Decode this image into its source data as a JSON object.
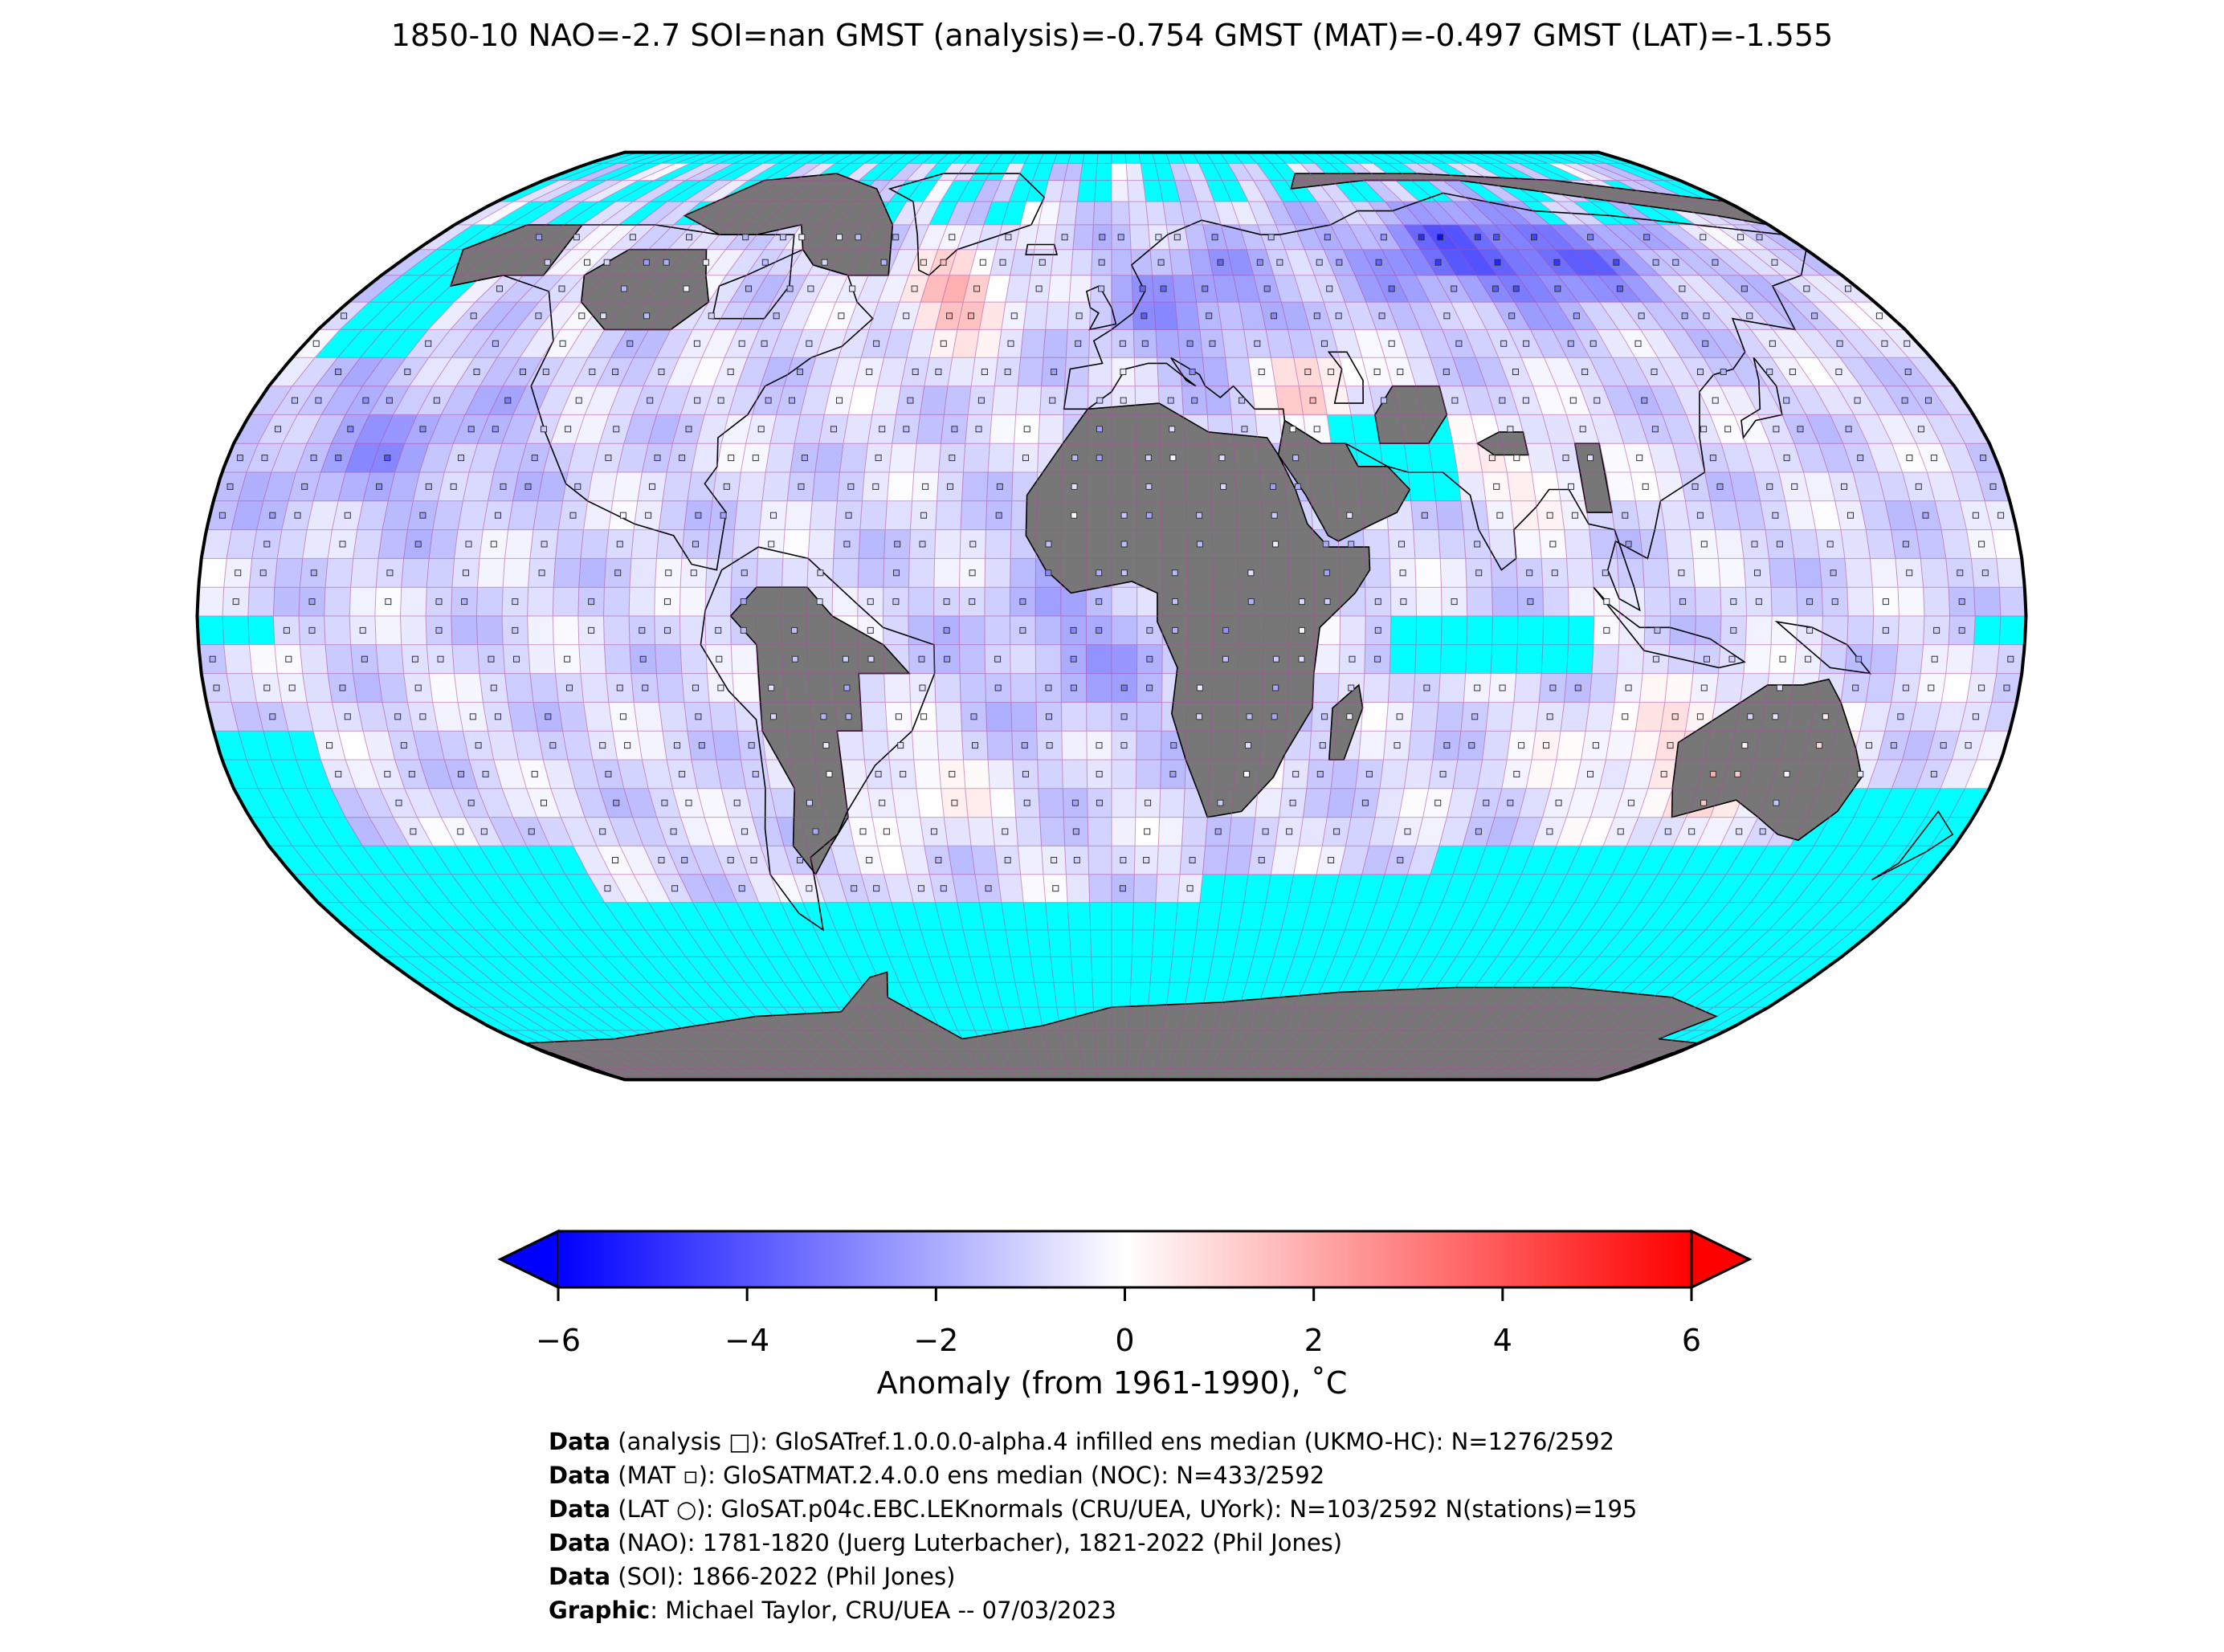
{
  "title": "1850-10 NAO=-2.7 SOI=nan GMST (analysis)=-0.754 GMST (MAT)=-0.497 GMST (LAT)=-1.555",
  "colors": {
    "no_data_ocean": "#00ffff",
    "land_no_data": "#777777",
    "grid_line": "#b04aa0",
    "coast_line": "#000000",
    "cmap_negative": "#0000ff",
    "cmap_zero": "#ffffff",
    "cmap_positive": "#ff0000"
  },
  "colorbar": {
    "min": -6,
    "max": 6,
    "extend": "both",
    "ticks": [
      "−6",
      "−4",
      "−2",
      "0",
      "2",
      "4",
      "6"
    ],
    "tick_values": [
      -6,
      -4,
      -2,
      0,
      2,
      4,
      6
    ],
    "label": "Anomaly (from 1961-1990), ˚C"
  },
  "credits": [
    {
      "bold": "Data",
      "text": " (analysis □): GloSATref.1.0.0.0-alpha.4 infilled ens median (UKMO-HC): N=1276/2592"
    },
    {
      "bold": "Data",
      "text": " (MAT ▫): GloSATMAT.2.4.0.0 ens median (NOC): N=433/2592"
    },
    {
      "bold": "Data",
      "text": " (LAT ○): GloSAT.p04c.EBC.LEKnormals (CRU/UEA, UYork): N=103/2592 N(stations)=195"
    },
    {
      "bold": "Data",
      "text": " (NAO): 1781-1820 (Juerg Luterbacher), 1821-2022 (Phil Jones)"
    },
    {
      "bold": "Data",
      "text": " (SOI): 1866-2022 (Phil Jones)"
    },
    {
      "bold": "Graphic",
      "text": ": Michael Taylor, CRU/UEA -- 07/03/2023"
    }
  ]
}
